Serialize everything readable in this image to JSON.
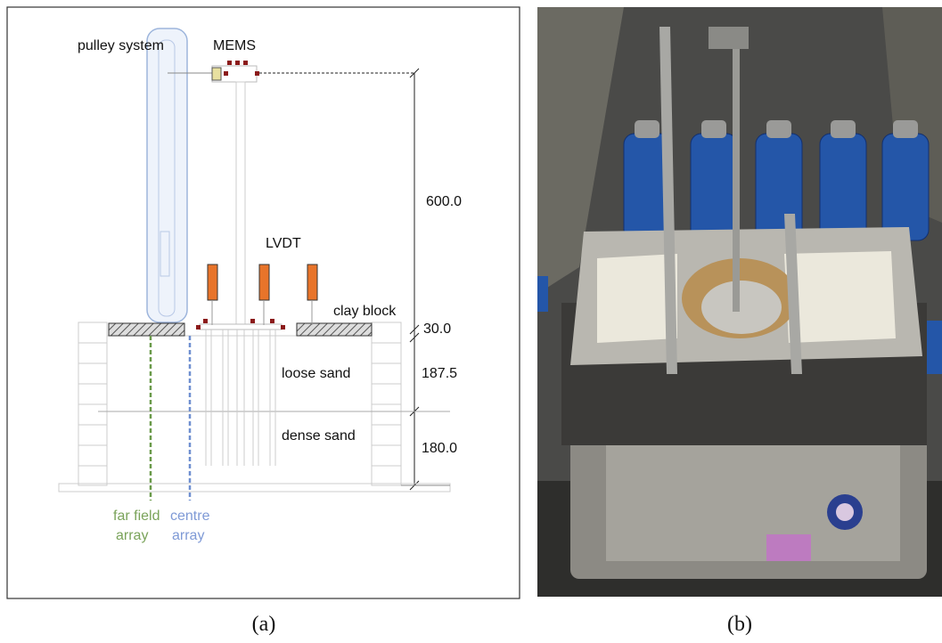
{
  "panel_a": {
    "caption": "(a)",
    "labels": {
      "pulley": "pulley system",
      "mems": "MEMS",
      "lvdt": "LVDT",
      "clay": "clay block",
      "loose": "loose sand",
      "dense": "dense sand"
    },
    "dimensions": {
      "height": "600.0",
      "clay": "30.0",
      "loose": "187.5",
      "dense": "180.0"
    },
    "arrays": {
      "far_field": [
        "far field",
        "array"
      ],
      "centre": [
        "centre",
        "array"
      ]
    }
  },
  "panel_b": {
    "caption": "(b)"
  }
}
